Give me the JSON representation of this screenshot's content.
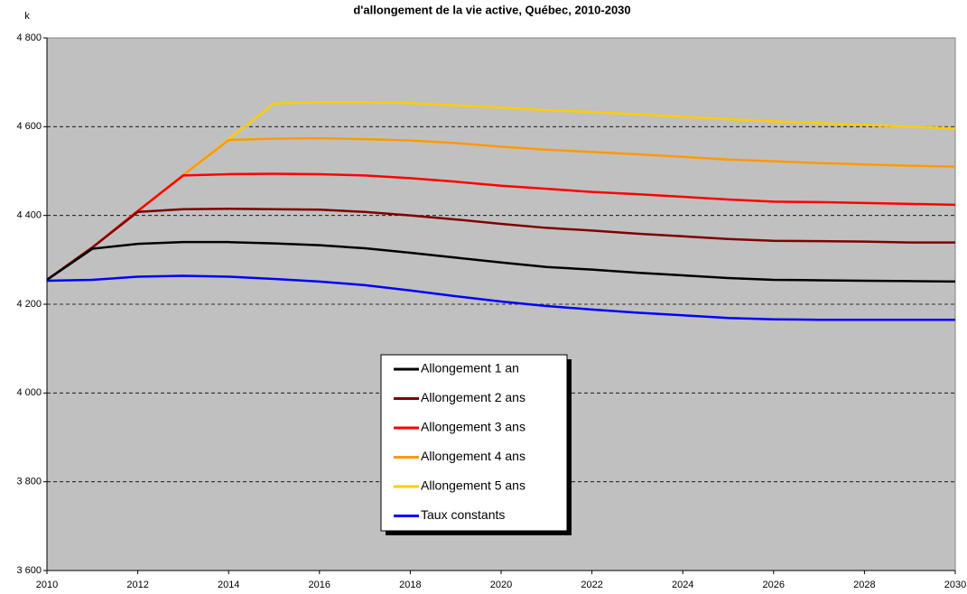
{
  "chart_data": {
    "type": "line",
    "title": "d'allongement de la vie active, Québec, 2010-2030",
    "y_label": "k",
    "x": [
      2010,
      2011,
      2012,
      2013,
      2014,
      2015,
      2016,
      2017,
      2018,
      2019,
      2020,
      2021,
      2022,
      2023,
      2024,
      2025,
      2026,
      2027,
      2028,
      2029,
      2030
    ],
    "xlim": [
      2010,
      2030
    ],
    "xticks": [
      2010,
      2012,
      2014,
      2016,
      2018,
      2020,
      2022,
      2024,
      2026,
      2028,
      2030
    ],
    "ylim": [
      3600,
      4800
    ],
    "yticks": [
      {
        "value": 3600,
        "label": "3 600"
      },
      {
        "value": 3800,
        "label": "3 800"
      },
      {
        "value": 4000,
        "label": "4 000"
      },
      {
        "value": 4200,
        "label": "4 200"
      },
      {
        "value": 4400,
        "label": "4 400"
      },
      {
        "value": 4600,
        "label": "4 600"
      },
      {
        "value": 4800,
        "label": "4 800"
      }
    ],
    "grid": true,
    "series": [
      {
        "name": "Allongement 1 an",
        "color": "#000000",
        "values": [
          4255,
          4325,
          4336,
          4340,
          4340,
          4337,
          4333,
          4326,
          4316,
          4305,
          4294,
          4284,
          4278,
          4271,
          4265,
          4259,
          4255,
          4254,
          4253,
          4252,
          4251
        ]
      },
      {
        "name": "Allongement 2 ans",
        "color": "#800000",
        "values": [
          4255,
          4328,
          4408,
          4414,
          4415,
          4414,
          4413,
          4408,
          4400,
          4391,
          4381,
          4372,
          4366,
          4359,
          4353,
          4347,
          4343,
          4342,
          4341,
          4339,
          4339
        ]
      },
      {
        "name": "Allongement 3 ans",
        "color": "#ff0000",
        "values": [
          4255,
          4328,
          4410,
          4490,
          4493,
          4494,
          4493,
          4490,
          4484,
          4476,
          4467,
          4460,
          4453,
          4448,
          4442,
          4436,
          4431,
          4430,
          4428,
          4426,
          4424
        ]
      },
      {
        "name": "Allongement 4 ans",
        "color": "#ff9900",
        "values": [
          4255,
          4328,
          4410,
          4491,
          4570,
          4573,
          4574,
          4572,
          4569,
          4563,
          4555,
          4548,
          4543,
          4538,
          4532,
          4526,
          4522,
          4518,
          4515,
          4512,
          4510
        ]
      },
      {
        "name": "Allongement 5 ans",
        "color": "#ffcc00",
        "values": [
          4255,
          4328,
          4410,
          4491,
          4572,
          4652,
          4655,
          4655,
          4653,
          4648,
          4643,
          4637,
          4633,
          4628,
          4622,
          4617,
          4612,
          4608,
          4604,
          4600,
          4596
        ]
      },
      {
        "name": "Taux constants",
        "color": "#0000ff",
        "values": [
          4253,
          4255,
          4262,
          4264,
          4262,
          4257,
          4251,
          4243,
          4231,
          4218,
          4206,
          4196,
          4188,
          4181,
          4175,
          4169,
          4166,
          4165,
          4165,
          4165,
          4165
        ]
      }
    ]
  }
}
